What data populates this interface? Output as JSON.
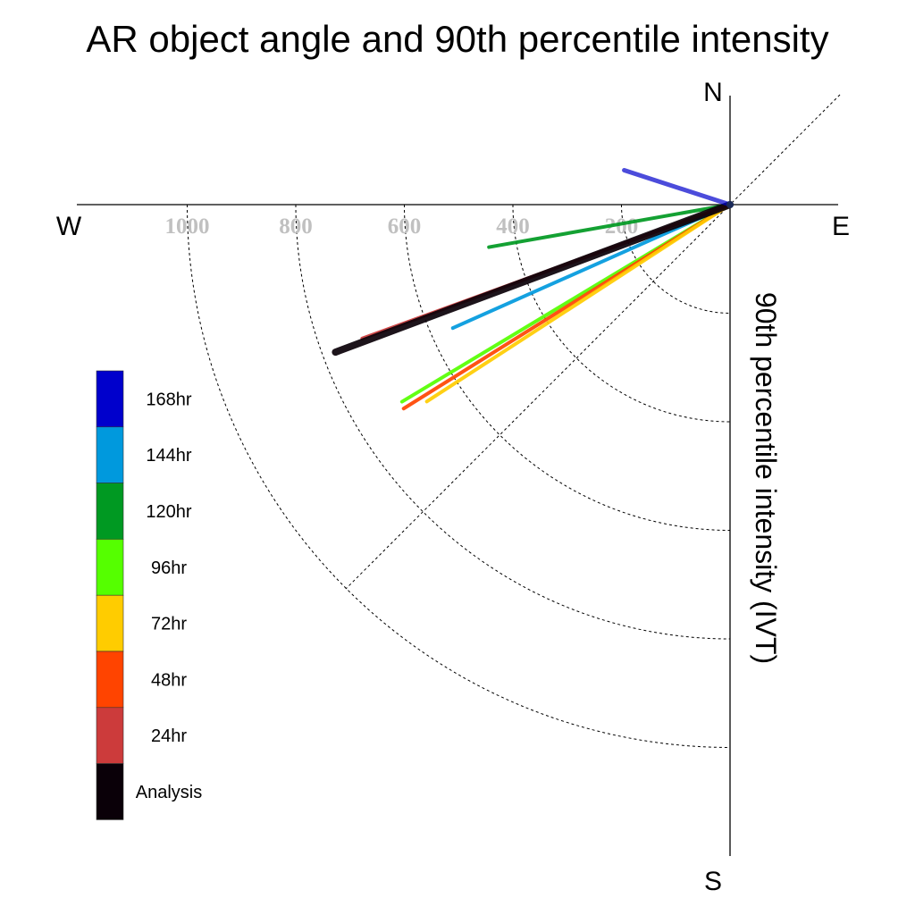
{
  "chart_data": {
    "type": "polar-vector",
    "title": "AR object angle and 90th percentile intensity",
    "directions": {
      "north": "N",
      "south": "S",
      "east": "E",
      "west": "W"
    },
    "ylabel": "90th percentile intensity (IVT)",
    "radial_ticks": [
      "200",
      "400",
      "600",
      "800",
      "1000"
    ],
    "radial_tick_values": [
      200,
      400,
      600,
      800,
      1000
    ],
    "rlim": [
      0,
      1200
    ],
    "series": [
      {
        "name": "168hr",
        "color": "#0000cc",
        "angle_deg": 18,
        "intensity": 205
      },
      {
        "name": "144hr",
        "color": "#0099dd",
        "angle_deg": -24,
        "intensity": 559
      },
      {
        "name": "120hr",
        "color": "#009922",
        "angle_deg": -10,
        "intensity": 451
      },
      {
        "name": "96hr",
        "color": "#55ff00",
        "angle_deg": -31,
        "intensity": 705
      },
      {
        "name": "72hr",
        "color": "#ffcc00",
        "angle_deg": -33,
        "intensity": 666
      },
      {
        "name": "48hr",
        "color": "#ff4400",
        "angle_deg": -32,
        "intensity": 709
      },
      {
        "name": "24hr",
        "color": "#cc3b3b",
        "angle_deg": -20,
        "intensity": 721
      },
      {
        "name": "Analysis",
        "color": "#0a0008",
        "angle_deg": -20.5,
        "intensity": 776
      }
    ],
    "legend_position": "left"
  }
}
